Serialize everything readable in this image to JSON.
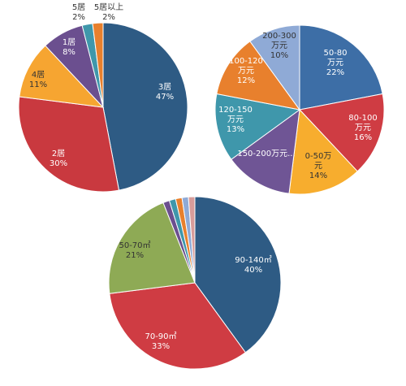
{
  "chart_data": [
    {
      "type": "pie",
      "slices": [
        {
          "label": "3居",
          "value": 47,
          "value_text": "47%",
          "color": "#2e5b84"
        },
        {
          "label": "2居",
          "value": 30,
          "value_text": "30%",
          "color": "#c9393f"
        },
        {
          "label": "4居",
          "value": 11,
          "value_text": "11%",
          "color": "#f6a531"
        },
        {
          "label": "1居",
          "value": 8,
          "value_text": "8%",
          "color": "#6b4f8f"
        },
        {
          "label": "5居",
          "value": 2,
          "value_text": "2%",
          "color": "#3f97ab"
        },
        {
          "label": "5居以上",
          "value": 2,
          "value_text": "2%",
          "color": "#e8802d"
        }
      ]
    },
    {
      "type": "pie",
      "slices": [
        {
          "label": "50-80万元",
          "value": 22,
          "value_text": "22%",
          "color": "#3d6ea6"
        },
        {
          "label": "80-100万元",
          "value": 16,
          "value_text": "16%",
          "color": "#cf3c43"
        },
        {
          "label": "0-50万元",
          "value": 14,
          "value_text": "14%",
          "color": "#f7ad2e"
        },
        {
          "label": "150-200万元...",
          "value": 13,
          "value_text": "",
          "color": "#6f5595"
        },
        {
          "label": "120-150万元",
          "value": 13,
          "value_text": "13%",
          "color": "#3f97ab"
        },
        {
          "label": "100-120万元",
          "value": 12,
          "value_text": "12%",
          "color": "#e8802d"
        },
        {
          "label": "200-300万元",
          "value": 10,
          "value_text": "10%",
          "color": "#8faad6"
        }
      ]
    },
    {
      "type": "pie",
      "slices": [
        {
          "label": "90-140㎡",
          "value": 40,
          "value_text": "40%",
          "color": "#2e5b84"
        },
        {
          "label": "70-90㎡",
          "value": 33,
          "value_text": "33%",
          "color": "#cf3c43"
        },
        {
          "label": "50-70㎡",
          "value": 21,
          "value_text": "21%",
          "color": "#8eaa55"
        },
        {
          "label": "",
          "value": 1.2,
          "value_text": "",
          "color": "#6b4f8f"
        },
        {
          "label": "",
          "value": 1.2,
          "value_text": "",
          "color": "#3f97ab"
        },
        {
          "label": "",
          "value": 1.2,
          "value_text": "",
          "color": "#e8802d"
        },
        {
          "label": "",
          "value": 1.2,
          "value_text": "",
          "color": "#8faad6"
        },
        {
          "label": "",
          "value": 1.2,
          "value_text": "",
          "color": "#d79c9a"
        }
      ]
    }
  ]
}
